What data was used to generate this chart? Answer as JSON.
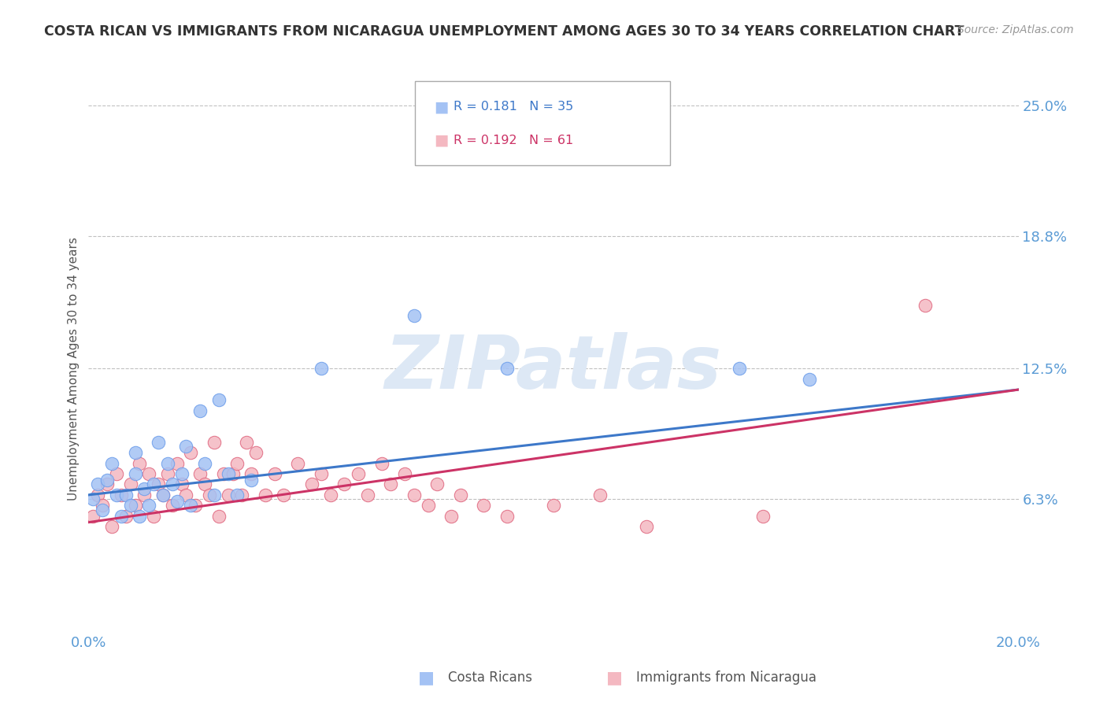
{
  "title": "COSTA RICAN VS IMMIGRANTS FROM NICARAGUA UNEMPLOYMENT AMONG AGES 30 TO 34 YEARS CORRELATION CHART",
  "source": "Source: ZipAtlas.com",
  "ylabel": "Unemployment Among Ages 30 to 34 years",
  "xmin": 0.0,
  "xmax": 0.2,
  "ymin": 0.0,
  "ymax": 0.25,
  "yticks": [
    0.0,
    0.063,
    0.125,
    0.188,
    0.25
  ],
  "ytick_labels": [
    "",
    "6.3%",
    "12.5%",
    "18.8%",
    "25.0%"
  ],
  "xticks": [
    0.0,
    0.05,
    0.1,
    0.15,
    0.2
  ],
  "xtick_labels": [
    "0.0%",
    "",
    "",
    "",
    "20.0%"
  ],
  "r1": 0.181,
  "n1": 35,
  "r2": 0.192,
  "n2": 61,
  "color1": "#a4c2f4",
  "color2": "#f4b8c1",
  "edge_color1": "#6d9eeb",
  "edge_color2": "#e06880",
  "line_color1": "#3d78c9",
  "line_color2": "#cc3366",
  "background_color": "#ffffff",
  "grid_color": "#c0c0c0",
  "watermark_color": "#dde8f5",
  "legend_label1": "Costa Ricans",
  "legend_label2": "Immigrants from Nicaragua",
  "trend_cr_x0": 0.0,
  "trend_cr_y0": 0.065,
  "trend_cr_x1": 0.2,
  "trend_cr_y1": 0.115,
  "trend_nic_x0": 0.0,
  "trend_nic_y0": 0.052,
  "trend_nic_x1": 0.2,
  "trend_nic_y1": 0.115,
  "costa_rican_x": [
    0.001,
    0.002,
    0.003,
    0.004,
    0.005,
    0.006,
    0.007,
    0.008,
    0.009,
    0.01,
    0.01,
    0.011,
    0.012,
    0.013,
    0.014,
    0.015,
    0.016,
    0.017,
    0.018,
    0.019,
    0.02,
    0.021,
    0.022,
    0.024,
    0.025,
    0.027,
    0.028,
    0.03,
    0.032,
    0.035,
    0.05,
    0.07,
    0.09,
    0.14,
    0.155
  ],
  "costa_rican_y": [
    0.063,
    0.07,
    0.058,
    0.072,
    0.08,
    0.065,
    0.055,
    0.065,
    0.06,
    0.075,
    0.085,
    0.055,
    0.068,
    0.06,
    0.07,
    0.09,
    0.065,
    0.08,
    0.07,
    0.062,
    0.075,
    0.088,
    0.06,
    0.105,
    0.08,
    0.065,
    0.11,
    0.075,
    0.065,
    0.072,
    0.125,
    0.15,
    0.125,
    0.125,
    0.12
  ],
  "nicaragua_x": [
    0.001,
    0.002,
    0.003,
    0.004,
    0.005,
    0.006,
    0.007,
    0.008,
    0.009,
    0.01,
    0.011,
    0.012,
    0.013,
    0.014,
    0.015,
    0.016,
    0.017,
    0.018,
    0.019,
    0.02,
    0.021,
    0.022,
    0.023,
    0.024,
    0.025,
    0.026,
    0.027,
    0.028,
    0.029,
    0.03,
    0.031,
    0.032,
    0.033,
    0.034,
    0.035,
    0.036,
    0.038,
    0.04,
    0.042,
    0.045,
    0.048,
    0.05,
    0.052,
    0.055,
    0.058,
    0.06,
    0.063,
    0.065,
    0.068,
    0.07,
    0.073,
    0.075,
    0.078,
    0.08,
    0.085,
    0.09,
    0.1,
    0.11,
    0.12,
    0.145,
    0.18
  ],
  "nicaragua_y": [
    0.055,
    0.065,
    0.06,
    0.07,
    0.05,
    0.075,
    0.065,
    0.055,
    0.07,
    0.06,
    0.08,
    0.065,
    0.075,
    0.055,
    0.07,
    0.065,
    0.075,
    0.06,
    0.08,
    0.07,
    0.065,
    0.085,
    0.06,
    0.075,
    0.07,
    0.065,
    0.09,
    0.055,
    0.075,
    0.065,
    0.075,
    0.08,
    0.065,
    0.09,
    0.075,
    0.085,
    0.065,
    0.075,
    0.065,
    0.08,
    0.07,
    0.075,
    0.065,
    0.07,
    0.075,
    0.065,
    0.08,
    0.07,
    0.075,
    0.065,
    0.06,
    0.07,
    0.055,
    0.065,
    0.06,
    0.055,
    0.06,
    0.065,
    0.05,
    0.055,
    0.155
  ]
}
